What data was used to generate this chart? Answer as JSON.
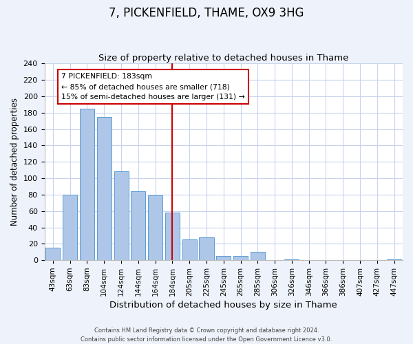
{
  "title": "7, PICKENFIELD, THAME, OX9 3HG",
  "subtitle": "Size of property relative to detached houses in Thame",
  "xlabel": "Distribution of detached houses by size in Thame",
  "ylabel": "Number of detached properties",
  "bar_labels": [
    "43sqm",
    "63sqm",
    "83sqm",
    "104sqm",
    "124sqm",
    "144sqm",
    "164sqm",
    "184sqm",
    "205sqm",
    "225sqm",
    "245sqm",
    "265sqm",
    "285sqm",
    "306sqm",
    "326sqm",
    "346sqm",
    "366sqm",
    "386sqm",
    "407sqm",
    "427sqm",
    "447sqm"
  ],
  "bar_values": [
    15,
    80,
    185,
    175,
    108,
    84,
    79,
    58,
    25,
    28,
    5,
    5,
    10,
    0,
    1,
    0,
    0,
    0,
    0,
    0,
    1
  ],
  "bar_color": "#aec6e8",
  "bar_edge_color": "#5b9bd5",
  "vline_x_index": 7,
  "vline_color": "#cc0000",
  "ylim": [
    0,
    240
  ],
  "yticks": [
    0,
    20,
    40,
    60,
    80,
    100,
    120,
    140,
    160,
    180,
    200,
    220,
    240
  ],
  "annotation_title": "7 PICKENFIELD: 183sqm",
  "annotation_line1": "← 85% of detached houses are smaller (718)",
  "annotation_line2": "15% of semi-detached houses are larger (131) →",
  "footer1": "Contains HM Land Registry data © Crown copyright and database right 2024.",
  "footer2": "Contains public sector information licensed under the Open Government Licence v3.0.",
  "bg_color": "#eef2fa",
  "plot_bg_color": "#ffffff",
  "grid_color": "#c8d4ee"
}
